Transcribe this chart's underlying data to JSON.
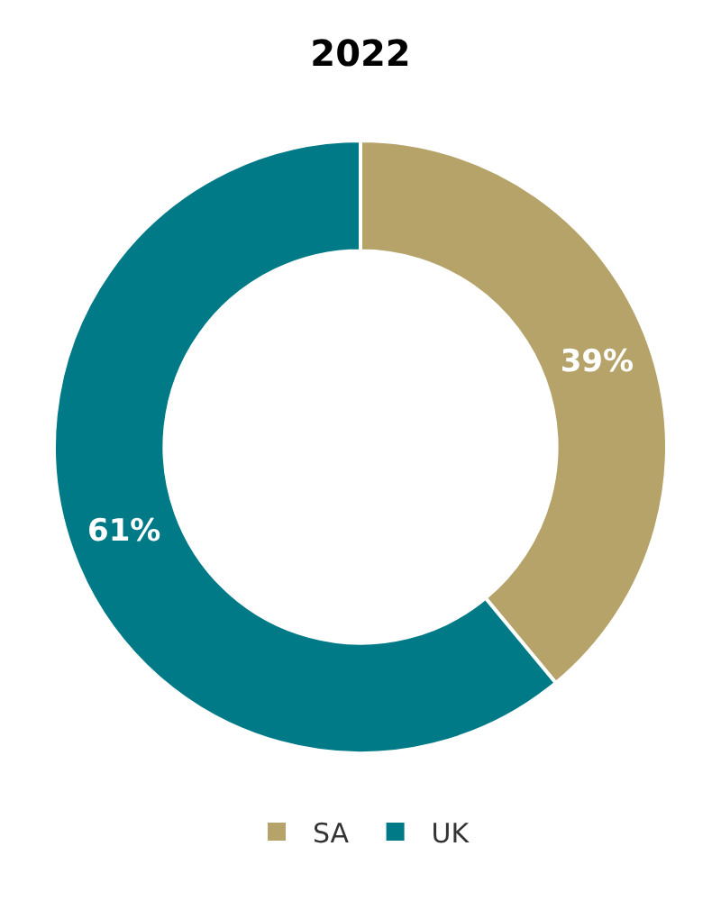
{
  "chart_data": {
    "type": "donut",
    "title": "2022",
    "categories": [
      "SA",
      "UK"
    ],
    "values": [
      39,
      61
    ],
    "value_labels": [
      "39%",
      "61%"
    ],
    "colors": [
      "#b5a36a",
      "#007a87"
    ],
    "legend": "bottom"
  }
}
